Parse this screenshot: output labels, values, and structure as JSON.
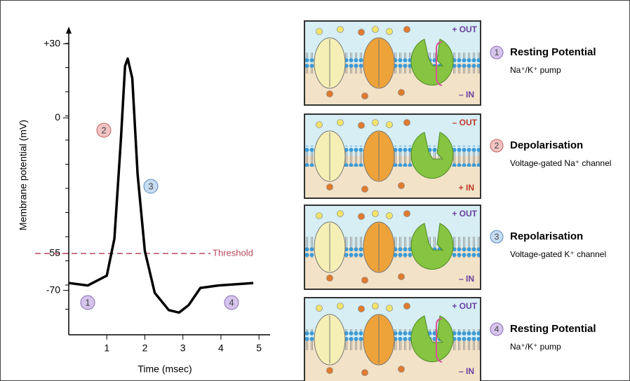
{
  "chart_data": {
    "type": "line",
    "x_label": "Time (msec)",
    "y_label": "Membrane potential (mV)",
    "x": [
      0,
      0.5,
      1.0,
      1.2,
      1.37,
      1.48,
      1.55,
      1.67,
      1.81,
      2.0,
      2.26,
      2.63,
      2.9,
      3.15,
      3.46,
      3.93,
      4.85
    ],
    "values": [
      -67,
      -68,
      -64,
      -49,
      -9,
      21,
      24,
      16,
      -23,
      -54,
      -71,
      -78,
      -79,
      -76,
      -69,
      -68,
      -67
    ],
    "color": "#000000",
    "xlim": [
      0,
      5.2
    ],
    "xticks": [
      1,
      2,
      3,
      4,
      5
    ],
    "ylim": [
      -88,
      35
    ],
    "yticks": [
      {
        "value": 30,
        "label": "+30"
      },
      0,
      -55,
      -70
    ],
    "threshold": {
      "value": -55,
      "label": "Threshold",
      "color": "#b5495b"
    },
    "annotations": [
      "1",
      "2",
      "3",
      "4"
    ]
  },
  "panels": [
    {
      "number": "1",
      "title": "Resting Potential",
      "subtitle": "Na⁺/K⁺ pump",
      "top": "+ OUT",
      "bottom": "– IN"
    },
    {
      "number": "2",
      "title": "Depolarisation",
      "subtitle": "Voltage-gated Na⁺ channel",
      "top": "– OUT",
      "bottom": "+ IN"
    },
    {
      "number": "3",
      "title": "Repolarisation",
      "subtitle": "Voltage-gated K⁺ channel",
      "top": "+ OUT",
      "bottom": "– IN"
    },
    {
      "number": "4",
      "title": "Resting Potential",
      "subtitle": "Na⁺/K⁺ pump",
      "top": "+ OUT",
      "bottom": "– IN"
    }
  ]
}
